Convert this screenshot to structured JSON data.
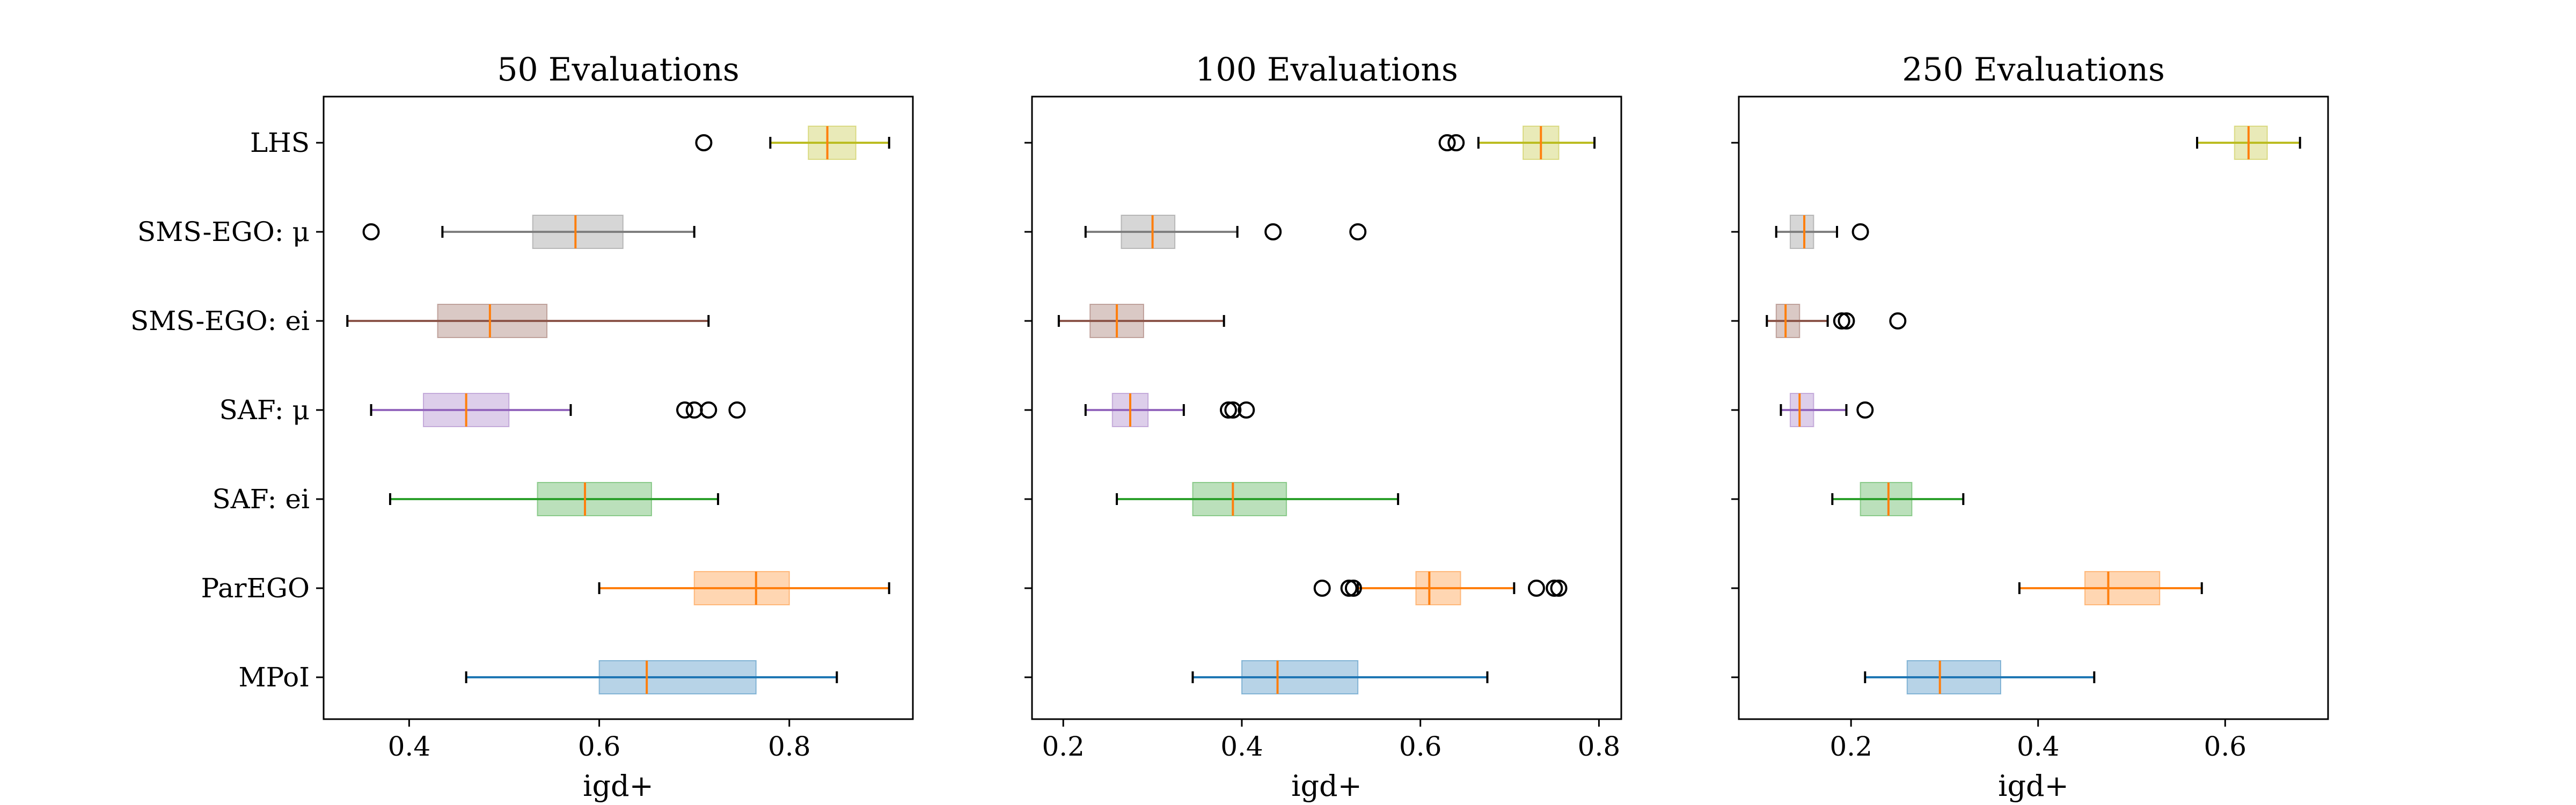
{
  "chart_data": {
    "type": "boxplot",
    "categories": [
      "MPoI",
      "ParEGO",
      "SAF: ei",
      "SAF: μ",
      "SMS-EGO: ei",
      "SMS-EGO: μ",
      "LHS"
    ],
    "colors": [
      "#1f77b4",
      "#ff7f0e",
      "#2ca02c",
      "#9467bd",
      "#8c564b",
      "#7f7f7f",
      "#bcbd22"
    ],
    "median_color": "#ff7f0e",
    "panels": [
      {
        "title": "50 Evaluations",
        "xlabel": "igd+",
        "xlim": [
          0.31,
          0.93
        ],
        "xticks": [
          0.4,
          0.6,
          0.8
        ],
        "xtick_labels": [
          "0.4",
          "0.6",
          "0.8"
        ],
        "boxes": [
          {
            "whislo": 0.46,
            "q1": 0.6,
            "med": 0.65,
            "q3": 0.765,
            "whishi": 0.85,
            "fliers": []
          },
          {
            "whislo": 0.6,
            "q1": 0.7,
            "med": 0.765,
            "q3": 0.8,
            "whishi": 0.905,
            "fliers": []
          },
          {
            "whislo": 0.38,
            "q1": 0.535,
            "med": 0.585,
            "q3": 0.655,
            "whishi": 0.725,
            "fliers": []
          },
          {
            "whislo": 0.36,
            "q1": 0.415,
            "med": 0.46,
            "q3": 0.505,
            "whishi": 0.57,
            "fliers": [
              0.69,
              0.7,
              0.715,
              0.745
            ]
          },
          {
            "whislo": 0.335,
            "q1": 0.43,
            "med": 0.485,
            "q3": 0.545,
            "whishi": 0.715,
            "fliers": []
          },
          {
            "whislo": 0.435,
            "q1": 0.53,
            "med": 0.575,
            "q3": 0.625,
            "whishi": 0.7,
            "fliers": [
              0.36
            ]
          },
          {
            "whislo": 0.78,
            "q1": 0.82,
            "med": 0.84,
            "q3": 0.87,
            "whishi": 0.905,
            "fliers": [
              0.71
            ]
          }
        ]
      },
      {
        "title": "100 Evaluations",
        "xlabel": "igd+",
        "xlim": [
          0.165,
          0.825
        ],
        "xticks": [
          0.2,
          0.4,
          0.6,
          0.8
        ],
        "xtick_labels": [
          "0.2",
          "0.4",
          "0.6",
          "0.8"
        ],
        "boxes": [
          {
            "whislo": 0.345,
            "q1": 0.4,
            "med": 0.44,
            "q3": 0.53,
            "whishi": 0.675,
            "fliers": []
          },
          {
            "whislo": 0.53,
            "q1": 0.595,
            "med": 0.61,
            "q3": 0.645,
            "whishi": 0.705,
            "fliers": [
              0.49,
              0.52,
              0.525,
              0.73,
              0.75,
              0.755
            ]
          },
          {
            "whislo": 0.26,
            "q1": 0.345,
            "med": 0.39,
            "q3": 0.45,
            "whishi": 0.575,
            "fliers": []
          },
          {
            "whislo": 0.225,
            "q1": 0.255,
            "med": 0.275,
            "q3": 0.295,
            "whishi": 0.335,
            "fliers": [
              0.385,
              0.39,
              0.405
            ]
          },
          {
            "whislo": 0.195,
            "q1": 0.23,
            "med": 0.26,
            "q3": 0.29,
            "whishi": 0.38,
            "fliers": []
          },
          {
            "whislo": 0.225,
            "q1": 0.265,
            "med": 0.3,
            "q3": 0.325,
            "whishi": 0.395,
            "fliers": [
              0.435,
              0.53
            ]
          },
          {
            "whislo": 0.665,
            "q1": 0.715,
            "med": 0.735,
            "q3": 0.755,
            "whishi": 0.795,
            "fliers": [
              0.63,
              0.64
            ]
          }
        ]
      },
      {
        "title": "250 Evaluations",
        "xlabel": "igd+",
        "xlim": [
          0.08,
          0.71
        ],
        "xticks": [
          0.2,
          0.4,
          0.6
        ],
        "xtick_labels": [
          "0.2",
          "0.4",
          "0.6"
        ],
        "boxes": [
          {
            "whislo": 0.215,
            "q1": 0.26,
            "med": 0.295,
            "q3": 0.36,
            "whishi": 0.46,
            "fliers": []
          },
          {
            "whislo": 0.38,
            "q1": 0.45,
            "med": 0.475,
            "q3": 0.53,
            "whishi": 0.575,
            "fliers": []
          },
          {
            "whislo": 0.18,
            "q1": 0.21,
            "med": 0.24,
            "q3": 0.265,
            "whishi": 0.32,
            "fliers": []
          },
          {
            "whislo": 0.125,
            "q1": 0.135,
            "med": 0.145,
            "q3": 0.16,
            "whishi": 0.195,
            "fliers": [
              0.215
            ]
          },
          {
            "whislo": 0.11,
            "q1": 0.12,
            "med": 0.13,
            "q3": 0.145,
            "whishi": 0.175,
            "fliers": [
              0.19,
              0.195,
              0.25
            ]
          },
          {
            "whislo": 0.12,
            "q1": 0.135,
            "med": 0.15,
            "q3": 0.16,
            "whishi": 0.185,
            "fliers": [
              0.21
            ]
          },
          {
            "whislo": 0.57,
            "q1": 0.61,
            "med": 0.625,
            "q3": 0.645,
            "whishi": 0.68,
            "fliers": []
          }
        ]
      }
    ]
  }
}
